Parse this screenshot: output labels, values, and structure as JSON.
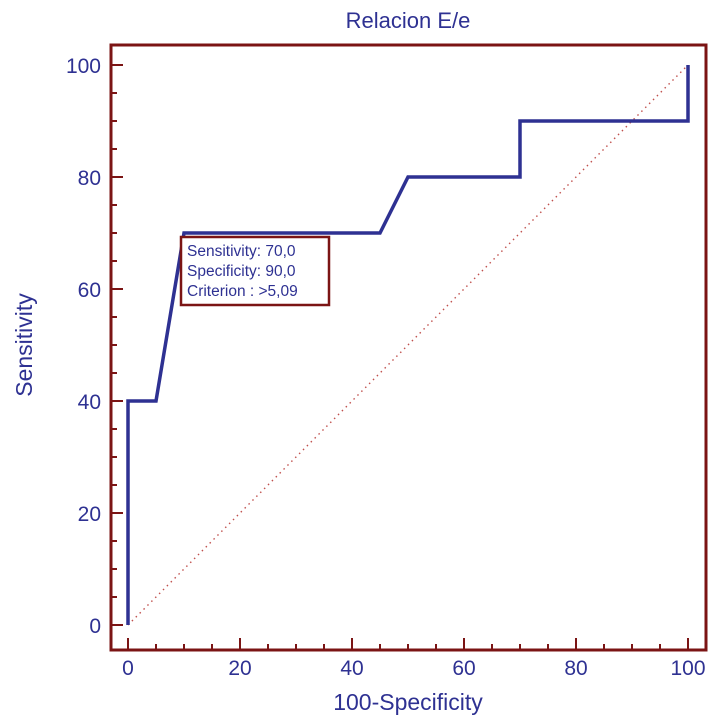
{
  "chart_data": {
    "type": "line",
    "title": "Relacion E/e",
    "xlabel": "100-Specificity",
    "ylabel": "Sensitivity",
    "xlim": [
      0,
      100
    ],
    "ylim": [
      0,
      100
    ],
    "x_ticks": [
      "0",
      "20",
      "40",
      "60",
      "80",
      "100"
    ],
    "y_ticks": [
      "0",
      "20",
      "40",
      "60",
      "80",
      "100"
    ],
    "grid": false,
    "series": [
      {
        "x": [
          0,
          0,
          5,
          10,
          45,
          50,
          70,
          70,
          100,
          100
        ],
        "y": [
          0,
          40,
          40,
          70,
          70,
          80,
          80,
          90,
          90,
          100
        ],
        "color": "#2e3192",
        "style": "solid"
      },
      {
        "x": [
          0,
          100
        ],
        "y": [
          0,
          100
        ],
        "color": "#c0504d",
        "style": "dotted"
      }
    ],
    "annotation": {
      "lines": [
        "Sensitivity: 70,0",
        "Specificity: 90,0",
        "Criterion : >5,09"
      ],
      "anchor": [
        10,
        70
      ]
    }
  },
  "colors": {
    "frame": "#7b1414",
    "text": "#2e3192",
    "curve": "#2e3192",
    "diagonal": "#c0504d"
  }
}
